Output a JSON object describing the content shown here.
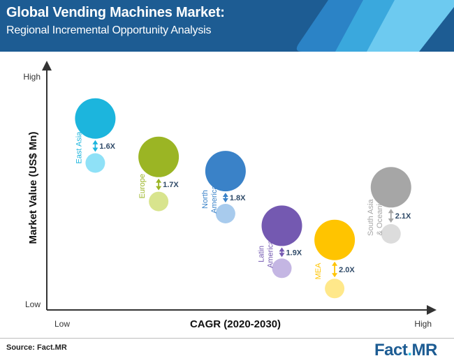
{
  "header": {
    "title": "Global Vending Machines Market:",
    "subtitle": "Regional Incremental Opportunity Analysis",
    "band_colors": [
      "#2b83c6",
      "#3aa8dd",
      "#6dcaf0"
    ]
  },
  "chart_data": {
    "type": "scatter",
    "title": "Global Vending Machines Market:",
    "subtitle": "Regional Incremental Opportunity Analysis",
    "xlabel": "CAGR (2020-2030)",
    "ylabel": "Market Value (US$ Mn)",
    "x_ticks": {
      "low": "Low",
      "high": "High"
    },
    "y_ticks": {
      "low": "Low",
      "high": "High"
    },
    "grid": false,
    "legend": "none",
    "xlim": [
      0,
      100
    ],
    "ylim": [
      0,
      100
    ],
    "points": [
      {
        "region": [
          "East Asia"
        ],
        "x": 10,
        "y_large": 87,
        "y_small": 65,
        "multiplier": "1.6X",
        "color_large": "#1cb5dd",
        "color_small": "#8fe1f7"
      },
      {
        "region": [
          "Europe"
        ],
        "x": 28,
        "y_large": 68,
        "y_small": 46,
        "multiplier": "1.7X",
        "color_large": "#9bb524",
        "color_small": "#d8e48d"
      },
      {
        "region": [
          "North",
          "America"
        ],
        "x": 47,
        "y_large": 61,
        "y_small": 40,
        "multiplier": "1.8X",
        "color_large": "#3a82c8",
        "color_small": "#a8cbed"
      },
      {
        "region": [
          "Latin",
          "America"
        ],
        "x": 63,
        "y_large": 34,
        "y_small": 13,
        "multiplier": "1.9X",
        "color_large": "#7459b1",
        "color_small": "#c4b6e3"
      },
      {
        "region": [
          "MEA"
        ],
        "x": 78,
        "y_large": 27,
        "y_small": 3,
        "multiplier": "2.0X",
        "color_large": "#ffc400",
        "color_small": "#ffe88a"
      },
      {
        "region": [
          "South Asia",
          "& Oceania"
        ],
        "x": 94,
        "y_large": 53,
        "y_small": 30,
        "multiplier": "2.1X",
        "color_large": "#a6a6a6",
        "color_small": "#dcdcdc"
      }
    ]
  },
  "footer": {
    "source": "Source: Fact.MR",
    "logo": {
      "fact": "Fact",
      "dot": ".",
      "mr": "MR"
    }
  }
}
